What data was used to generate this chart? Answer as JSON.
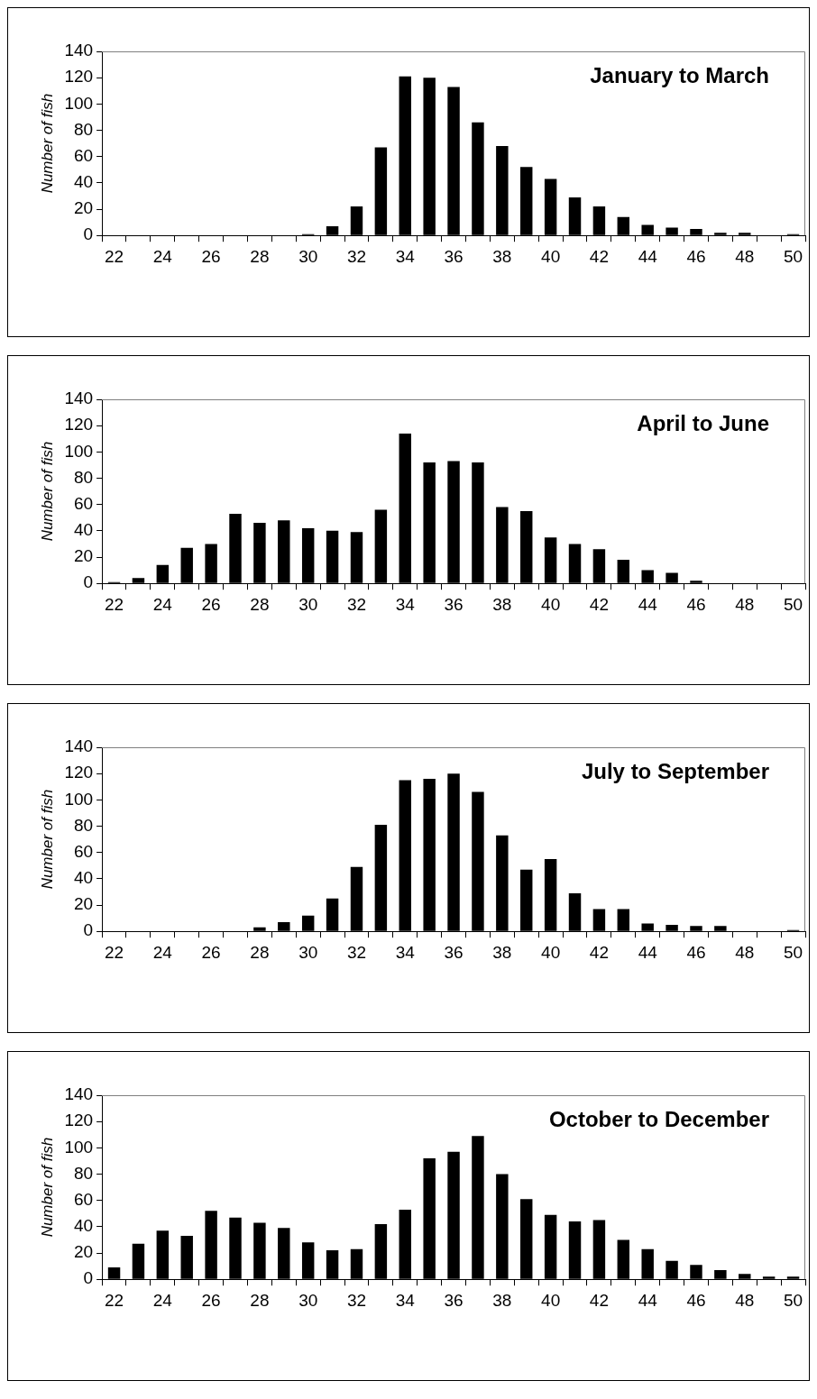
{
  "chart_data": [
    {
      "type": "bar",
      "title": "January to March",
      "ylabel": "Number of fish",
      "categories": [
        "22",
        null,
        "24",
        null,
        "26",
        null,
        "28",
        null,
        "30",
        null,
        "32",
        null,
        "34",
        null,
        "36",
        null,
        "38",
        null,
        "40",
        null,
        "42",
        null,
        "44",
        null,
        "46",
        null,
        "48",
        null,
        "50"
      ],
      "values": [
        0,
        0,
        0,
        0,
        0,
        0,
        0,
        0,
        1,
        7,
        22,
        67,
        121,
        120,
        113,
        86,
        68,
        52,
        43,
        29,
        22,
        14,
        8,
        6,
        5,
        2,
        2,
        0,
        1
      ],
      "color": "#000000",
      "ylim": [
        0,
        140
      ],
      "yticks": [
        0,
        20,
        40,
        60,
        80,
        100,
        120,
        140
      ],
      "grid": false,
      "legend": false
    },
    {
      "type": "bar",
      "title": "April to June",
      "ylabel": "Number of fish",
      "categories": [
        "22",
        null,
        "24",
        null,
        "26",
        null,
        "28",
        null,
        "30",
        null,
        "32",
        null,
        "34",
        null,
        "36",
        null,
        "38",
        null,
        "40",
        null,
        "42",
        null,
        "44",
        null,
        "46",
        null,
        "48",
        null,
        "50"
      ],
      "values": [
        1,
        4,
        14,
        27,
        30,
        53,
        46,
        48,
        42,
        40,
        39,
        56,
        114,
        92,
        93,
        92,
        58,
        55,
        35,
        30,
        26,
        18,
        10,
        8,
        2,
        0,
        0,
        0,
        0
      ],
      "color": "#000000",
      "ylim": [
        0,
        140
      ],
      "yticks": [
        0,
        20,
        40,
        60,
        80,
        100,
        120,
        140
      ],
      "grid": false,
      "legend": false
    },
    {
      "type": "bar",
      "title": "July to September",
      "ylabel": "Number of fish",
      "categories": [
        "22",
        null,
        "24",
        null,
        "26",
        null,
        "28",
        null,
        "30",
        null,
        "32",
        null,
        "34",
        null,
        "36",
        null,
        "38",
        null,
        "40",
        null,
        "42",
        null,
        "44",
        null,
        "46",
        null,
        "48",
        null,
        "50"
      ],
      "values": [
        0,
        0,
        0,
        0,
        0,
        0,
        3,
        7,
        12,
        25,
        49,
        81,
        115,
        116,
        120,
        106,
        73,
        47,
        55,
        29,
        17,
        17,
        6,
        5,
        4,
        4,
        0,
        0,
        1
      ],
      "color": "#000000",
      "ylim": [
        0,
        140
      ],
      "yticks": [
        0,
        20,
        40,
        60,
        80,
        100,
        120,
        140
      ],
      "grid": false,
      "legend": false
    },
    {
      "type": "bar",
      "title": "October to December",
      "ylabel": "Number of fish",
      "categories": [
        "22",
        null,
        "24",
        null,
        "26",
        null,
        "28",
        null,
        "30",
        null,
        "32",
        null,
        "34",
        null,
        "36",
        null,
        "38",
        null,
        "40",
        null,
        "42",
        null,
        "44",
        null,
        "46",
        null,
        "48",
        null,
        "50"
      ],
      "values": [
        9,
        27,
        37,
        33,
        52,
        47,
        43,
        39,
        28,
        22,
        23,
        42,
        53,
        92,
        97,
        109,
        80,
        61,
        49,
        44,
        45,
        30,
        23,
        14,
        11,
        7,
        4,
        2,
        2
      ],
      "color": "#000000",
      "ylim": [
        0,
        140
      ],
      "yticks": [
        0,
        20,
        40,
        60,
        80,
        100,
        120,
        140
      ],
      "grid": false,
      "legend": false
    }
  ]
}
